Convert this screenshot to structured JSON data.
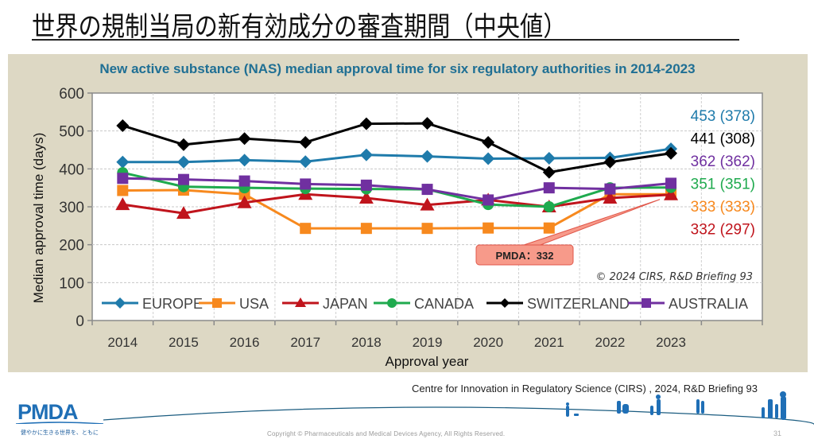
{
  "slide": {
    "title": "世界の規制当局の新有効成分の審査期間（中央値）",
    "source": "Centre for Innovation in Regulatory Science (CIRS) , 2024, R&D Briefing 93",
    "copyright": "Copyright © Pharmaceuticals and Medical Devices Agency, All Rights Reserved.",
    "page_number": "31",
    "logo_text": "PMDA",
    "logo_tagline": "健やかに生きる世界を、ともに"
  },
  "chart_data": {
    "type": "line",
    "title": "New active substance (NAS) median approval time for six regulatory authorities in 2014-2023",
    "xlabel": "Approval year",
    "ylabel": "Median approval time (days)",
    "ylim": [
      0,
      600
    ],
    "yticks": [
      "0",
      "100",
      "200",
      "300",
      "400",
      "500",
      "600"
    ],
    "categories": [
      "2014",
      "2015",
      "2016",
      "2017",
      "2018",
      "2019",
      "2020",
      "2021",
      "2022",
      "2023"
    ],
    "grid": true,
    "legend_position": "bottom-inside",
    "series": [
      {
        "name": "EUROPE",
        "color": "#1f7bab",
        "marker": "diamond",
        "values": [
          418,
          418,
          423,
          419,
          437,
          433,
          427,
          428,
          429,
          453
        ],
        "end_label": "453 (378)"
      },
      {
        "name": "USA",
        "color": "#f7891e",
        "marker": "square",
        "values": [
          343,
          344,
          333,
          243,
          243,
          243,
          244,
          244,
          333,
          333
        ],
        "end_label": "333 (333)"
      },
      {
        "name": "JAPAN",
        "color": "#c0141c",
        "marker": "triangle",
        "values": [
          306,
          283,
          311,
          333,
          323,
          305,
          318,
          300,
          323,
          332
        ],
        "end_label": "332 (297)"
      },
      {
        "name": "CANADA",
        "color": "#1faa4e",
        "marker": "circle",
        "values": [
          390,
          353,
          350,
          348,
          347,
          346,
          306,
          300,
          350,
          351
        ],
        "end_label": "351 (351)"
      },
      {
        "name": "SWITZERLAND",
        "color": "#000000",
        "marker": "diamond",
        "values": [
          514,
          464,
          480,
          470,
          519,
          520,
          470,
          391,
          418,
          441
        ],
        "end_label": "441 (308)"
      },
      {
        "name": "AUSTRALIA",
        "color": "#7030a0",
        "marker": "square",
        "values": [
          375,
          372,
          368,
          360,
          357,
          346,
          318,
          350,
          347,
          362
        ],
        "end_label": "362 (362)"
      }
    ],
    "end_label_order": [
      "EUROPE",
      "SWITZERLAND",
      "AUSTRALIA",
      "CANADA",
      "USA",
      "JAPAN"
    ],
    "annotations": [
      {
        "text": "PMDA：332",
        "points_to": {
          "series": "JAPAN",
          "category": "2023"
        },
        "fill": "#f79a8a",
        "border": "#e0574a"
      },
      {
        "text": "© 2024 CIRS, R&D Briefing 93"
      }
    ]
  }
}
